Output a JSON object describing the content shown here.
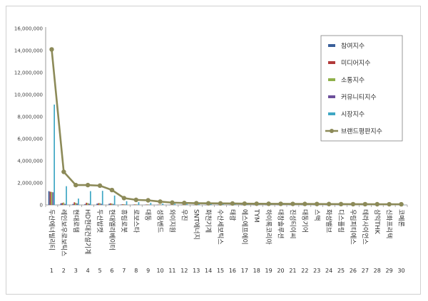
{
  "chart_data": {
    "type": "bar",
    "ylim": [
      0,
      16000000
    ],
    "yticks": [
      "0",
      "2,000,000",
      "4,000,000",
      "6,000,000",
      "8,000,000",
      "10,000,000",
      "12,000,000",
      "14,000,000",
      "16,000,000"
    ],
    "grid": false,
    "legend_position": "right",
    "indices": [
      "1",
      "2",
      "3",
      "4",
      "5",
      "6",
      "7",
      "8",
      "9",
      "10",
      "11",
      "12",
      "13",
      "14",
      "15",
      "16",
      "17",
      "18",
      "19",
      "20",
      "21",
      "22",
      "23",
      "24",
      "25",
      "26",
      "27",
      "28",
      "29",
      "30"
    ],
    "categories": [
      "두산에너빌리티",
      "레인보우로보틱스",
      "현대로템",
      "HD현대건설기계",
      "두산밥캣",
      "현대엘리베이터",
      "휴림로봇",
      "로보스타",
      "대동",
      "성동벤드",
      "와이지원",
      "우진",
      "SNT에너지",
      "화천기계",
      "수산세보틱스",
      "태광",
      "에스에프에이",
      "TYM",
      "하이록코리아",
      "대창솔루션",
      "진성티이씨",
      "대동기어",
      "스맥",
      "화성밸브",
      "디스플링",
      "우림피티에스",
      "테라사이언스",
      "삼익THK",
      "신화프리텍",
      "코메론"
    ],
    "series": [
      {
        "name": "참여지수",
        "color": "#3a5f9a",
        "values": [
          1250000,
          150000,
          90000,
          80000,
          120000,
          110000,
          45000,
          30000,
          25000,
          18000,
          12000,
          9000,
          8000,
          7000,
          7000,
          6000,
          6000,
          5500,
          5000,
          5000,
          4500,
          4500,
          4000,
          4000,
          3500,
          3500,
          3000,
          3000,
          2500,
          2500
        ]
      },
      {
        "name": "미디어지수",
        "color": "#b23a3a",
        "values": [
          1200000,
          180000,
          240000,
          200000,
          160000,
          150000,
          60000,
          45000,
          40000,
          35000,
          25000,
          15000,
          12000,
          10000,
          10000,
          9000,
          8000,
          8000,
          7000,
          7000,
          6500,
          6000,
          6000,
          5500,
          5000,
          5000,
          4500,
          4500,
          4000,
          4000
        ]
      },
      {
        "name": "소통지수",
        "color": "#8fb04a",
        "values": [
          1180000,
          220000,
          200000,
          180000,
          170000,
          130000,
          70000,
          55000,
          50000,
          40000,
          30000,
          20000,
          15000,
          13000,
          12000,
          11000,
          10000,
          9000,
          8500,
          8000,
          7500,
          7000,
          6500,
          6000,
          5500,
          5000,
          5000,
          4500,
          4000,
          4000
        ]
      },
      {
        "name": "커뮤니티지수",
        "color": "#6c4f9a",
        "values": [
          1150000,
          100000,
          140000,
          120000,
          110000,
          90000,
          40000,
          30000,
          25000,
          20000,
          15000,
          10000,
          9000,
          8000,
          7000,
          7000,
          6000,
          6000,
          5500,
          5000,
          5000,
          4500,
          4500,
          4000,
          4000,
          3500,
          3500,
          3000,
          3000,
          2500
        ]
      },
      {
        "name": "시장지수",
        "color": "#3fa7c4",
        "values": [
          9100000,
          1700000,
          580000,
          1250000,
          1280000,
          850000,
          340000,
          250000,
          200000,
          130000,
          110000,
          90000,
          80000,
          70000,
          60000,
          55000,
          50000,
          45000,
          40000,
          35000,
          32000,
          30000,
          28000,
          25000,
          22000,
          20000,
          18000,
          15000,
          12000,
          10000
        ]
      }
    ],
    "line": {
      "name": "브랜드평판지수",
      "color": "#8c8a58",
      "values": [
        14100000,
        3000000,
        1800000,
        1800000,
        1750000,
        1350000,
        620000,
        460000,
        420000,
        300000,
        210000,
        180000,
        160000,
        150000,
        140000,
        130000,
        120000,
        110000,
        105000,
        100000,
        95000,
        90000,
        85000,
        80000,
        75000,
        70000,
        68000,
        65000,
        62000,
        60000
      ]
    }
  }
}
